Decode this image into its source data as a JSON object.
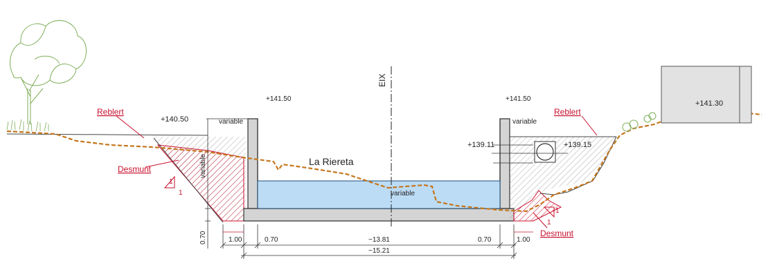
{
  "colors": {
    "red": "#c8102e",
    "water": "#bcdcf5",
    "water_edge": "#1f4e79",
    "concrete": "#d4d4d4",
    "terrain": "#c4761c",
    "hatch": "#9a9a9a",
    "foliage": "#7fae5a"
  },
  "labels": {
    "axis": "EIX",
    "channel_name": "La Riereta",
    "reblert_left": "Reblert",
    "reblert_right": "Reblert",
    "desmunt_left": "Desmunt",
    "desmunt_right": "Desmunt",
    "variable_top_left": "variable",
    "variable_wall_left": "variable",
    "variable_top_right": "variable",
    "variable_water": "variable"
  },
  "levels": {
    "ground_left": "+140.50",
    "wall_top_left": "+141.50",
    "wall_top_right": "+141.50",
    "pipe_left": "+139.11",
    "pipe_right": "+139.15",
    "building": "+141.30"
  },
  "slopes": {
    "left": {
      "rise": "1",
      "run": "1"
    },
    "right": {
      "rise": "1",
      "run": "1"
    }
  },
  "dimensions": {
    "left_cut": "1.00",
    "left_wall": "0.70",
    "inner_width": "~13.81",
    "right_wall": "0.70",
    "right_cut": "1.00",
    "total_width": "~15.21",
    "base_thickness": "0.70"
  },
  "icons": [
    "tree-icon",
    "shrub-icon"
  ]
}
